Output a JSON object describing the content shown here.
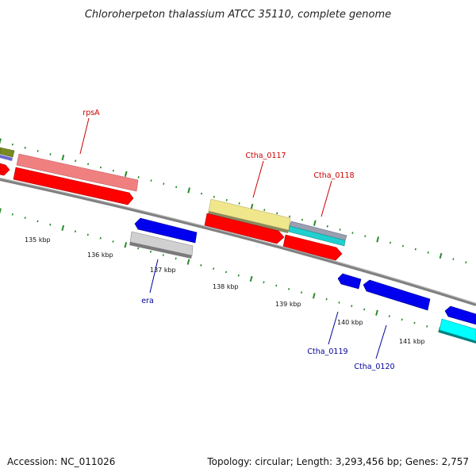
{
  "title": "Chloroherpeton thalassium ATCC 35110, complete genome",
  "accession": "Accession: NC_011026",
  "summary": "Topology: circular; Length: 3,293,456 bp; Genes: 2,757",
  "colors": {
    "backbone": "#808080",
    "tick": "#2a8a2a",
    "label_red": "#cc0000",
    "label_blue": "#000099",
    "forward_cds": "#ff0000",
    "reverse_cds": "#0000ee"
  },
  "ruler": [
    {
      "label": "135 kbp"
    },
    {
      "label": "136 kbp"
    },
    {
      "label": "137 kbp"
    },
    {
      "label": "138 kbp"
    },
    {
      "label": "139 kbp"
    },
    {
      "label": "140 kbp"
    },
    {
      "label": "141 kbp"
    }
  ],
  "gene_labels": [
    {
      "name": "rpsA",
      "strand": "forward"
    },
    {
      "name": "Ctha_0117",
      "strand": "forward"
    },
    {
      "name": "Ctha_0118",
      "strand": "forward"
    },
    {
      "name": "era",
      "strand": "reverse"
    },
    {
      "name": "Ctha_0119",
      "strand": "reverse"
    },
    {
      "name": "Ctha_0120",
      "strand": "reverse"
    }
  ]
}
